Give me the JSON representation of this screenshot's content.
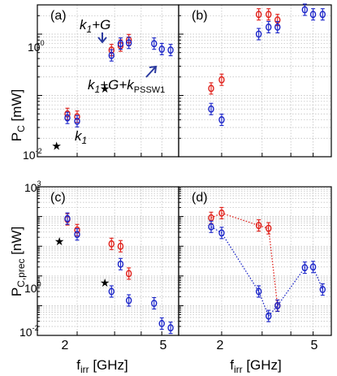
{
  "figure": {
    "ylabel_top": "P_C [mW]",
    "ylabel_bottom": "P_C,prec [nW]",
    "xlabel_left": "f_irr [GHz]",
    "xlabel_right": "f_irr [GHz]",
    "xtick_labels": [
      "2",
      "5"
    ],
    "ytick_labels_top": [
      "10^0",
      "10^-2"
    ],
    "ytick_labels_bottom": [
      "10^3",
      "10^0",
      "10^-2"
    ],
    "annotations": {
      "k1G": "k1+G",
      "k1": "k1",
      "k1Gk": "k1+G+kPSSW1"
    },
    "colors": {
      "red": "#e0201a",
      "blue": "#1a24c8",
      "arrow": "#2b3aa0"
    },
    "marker_glyph": "★"
  },
  "chart_data": [
    {
      "panel": "a",
      "type": "scatter",
      "xscale": "log",
      "yscale": "log",
      "xlim": [
        1.3,
        6.0
      ],
      "ylim": [
        0.01,
        3.0
      ],
      "ylabel": "P_C [mW]",
      "series": [
        {
          "color": "red",
          "x": [
            1.8,
            2.0,
            2.9,
            3.2,
            3.5
          ],
          "y": [
            0.05,
            0.045,
            0.55,
            0.65,
            0.8
          ]
        },
        {
          "color": "blue",
          "x": [
            1.8,
            2.0,
            2.9,
            3.2,
            3.5,
            4.6,
            5.0,
            5.5
          ],
          "y": [
            0.043,
            0.038,
            0.45,
            0.7,
            0.72,
            0.7,
            0.57,
            0.55
          ]
        },
        {
          "color": "black",
          "marker": "star",
          "x": [
            1.6,
            2.7
          ],
          "y": [
            0.015,
            0.13
          ]
        }
      ]
    },
    {
      "panel": "b",
      "type": "scatter",
      "xscale": "log",
      "yscale": "log",
      "xlim": [
        1.3,
        6.0
      ],
      "ylim": [
        0.01,
        3.0
      ],
      "series": [
        {
          "color": "red",
          "x": [
            1.8,
            2.0,
            2.9,
            3.2,
            3.5
          ],
          "y": [
            0.13,
            0.18,
            2.1,
            2.1,
            1.7
          ]
        },
        {
          "color": "blue",
          "x": [
            1.8,
            2.0,
            2.9,
            3.2,
            3.5,
            4.6,
            5.0,
            5.5
          ],
          "y": [
            0.06,
            0.04,
            1.0,
            1.3,
            1.3,
            2.5,
            2.1,
            2.1
          ]
        }
      ]
    },
    {
      "panel": "c",
      "type": "scatter",
      "xscale": "log",
      "yscale": "log",
      "xlim": [
        1.3,
        6.0
      ],
      "ylim": [
        0.01,
        1000
      ],
      "ylabel": "P_C,prec [nW]",
      "xlabel": "f_irr [GHz]",
      "series": [
        {
          "color": "red",
          "x": [
            1.8,
            2.0,
            2.9,
            3.2,
            3.5
          ],
          "y": [
            80,
            35,
            12,
            10,
            1.2
          ]
        },
        {
          "color": "blue",
          "x": [
            1.8,
            2.0,
            2.9,
            3.2,
            3.5,
            4.6,
            5.0,
            5.5
          ],
          "y": [
            85,
            25,
            0.3,
            2.5,
            0.15,
            0.12,
            0.025,
            0.018
          ]
        },
        {
          "color": "black",
          "marker": "star",
          "x": [
            1.65,
            2.7
          ],
          "y": [
            15,
            0.6
          ]
        }
      ]
    },
    {
      "panel": "d",
      "type": "scatter",
      "xscale": "log",
      "yscale": "log",
      "xlim": [
        1.3,
        6.0
      ],
      "ylim": [
        0.01,
        1000
      ],
      "xlabel": "f_irr [GHz]",
      "series": [
        {
          "color": "red",
          "dotted_line": true,
          "x": [
            1.8,
            2.0,
            2.9,
            3.2,
            3.5
          ],
          "y": [
            90,
            130,
            50,
            40,
            0.1
          ]
        },
        {
          "color": "blue",
          "dotted_line": true,
          "x": [
            1.8,
            2.0,
            2.9,
            3.2,
            3.5,
            4.6,
            5.0,
            5.5
          ],
          "y": [
            45,
            28,
            0.3,
            0.045,
            0.1,
            1.9,
            2.0,
            0.35
          ]
        }
      ]
    }
  ]
}
